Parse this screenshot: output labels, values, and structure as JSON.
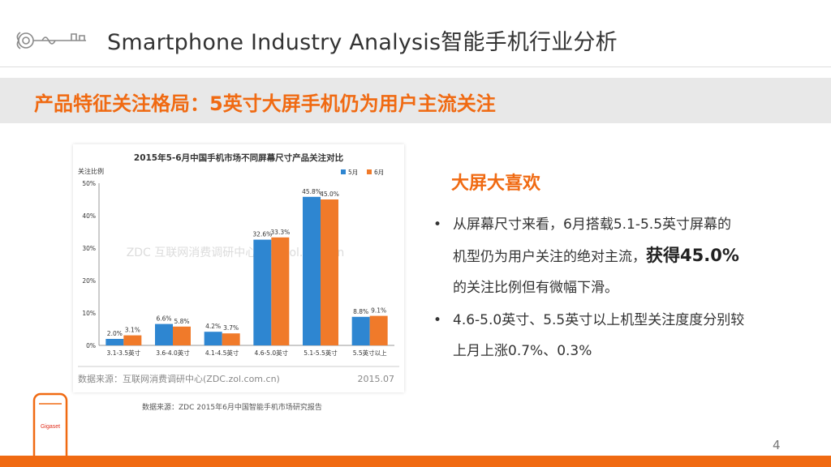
{
  "header": {
    "title": "Smartphone Industry Analysis智能手机行业分析",
    "logo_icon": "ornamental-key-icon"
  },
  "banner": {
    "title": "产品特征关注格局：5英寸大屏手机仍为用户主流关注"
  },
  "chart_data": {
    "type": "bar",
    "title": "2015年5-6月中国手机市场不同屏幕尺寸产品关注对比",
    "ylabel": "关注比例",
    "ylim": [
      0,
      50
    ],
    "yticks": [
      "0%",
      "10%",
      "20%",
      "30%",
      "40%",
      "50%"
    ],
    "categories": [
      "3.1-3.5英寸",
      "3.6-4.0英寸",
      "4.1-4.5英寸",
      "4.6-5.0英寸",
      "5.1-5.5英寸",
      "5.5英寸以上"
    ],
    "series": [
      {
        "name": "5月",
        "color": "#2e86d1",
        "values": [
          2.0,
          6.6,
          4.2,
          32.6,
          45.8,
          8.8
        ],
        "labels": [
          "2.0%",
          "6.6%",
          "4.2%",
          "32.6%",
          "45.8%",
          "8.8%"
        ]
      },
      {
        "name": "6月",
        "color": "#f07a2a",
        "values": [
          3.1,
          5.8,
          3.7,
          33.3,
          45.0,
          9.1
        ],
        "labels": [
          "3.1%",
          "5.8%",
          "3.7%",
          "33.3%",
          "45.0%",
          "9.1%"
        ]
      }
    ],
    "legend": "top-right",
    "grid": false,
    "source_left": "数据来源：互联网消费调研中心(ZDC.zol.com.cn)",
    "source_right": "2015.07",
    "watermark": "ZDC 互联网消费调研中心 zdc.zol.com.cn"
  },
  "chart_source": "数据来源：ZDC 2015年6月中国智能手机市场研究报告",
  "phone": {
    "brand": "Gigaset"
  },
  "right": {
    "heading": "大屏大喜欢",
    "bullet_symbol": "•",
    "b1_line1": "从屏幕尺寸来看，6月搭载5.1-5.5英寸屏幕的",
    "b1_line2_pre": "机型仍为用户关注的绝对主流，",
    "b1_line2_big": "获得45.0%",
    "b1_line3": "的关注比例但有微幅下滑。",
    "b2_line1": "4.6-5.0英寸、5.5英寸以上机型关注度度分别较",
    "b2_line2": "上月上涨0.7%、0.3%"
  },
  "page_number": "4",
  "colors": {
    "accent": "#f06a12",
    "banner_bg": "#e8e8e8",
    "series_may": "#2e86d1",
    "series_june": "#f07a2a"
  }
}
